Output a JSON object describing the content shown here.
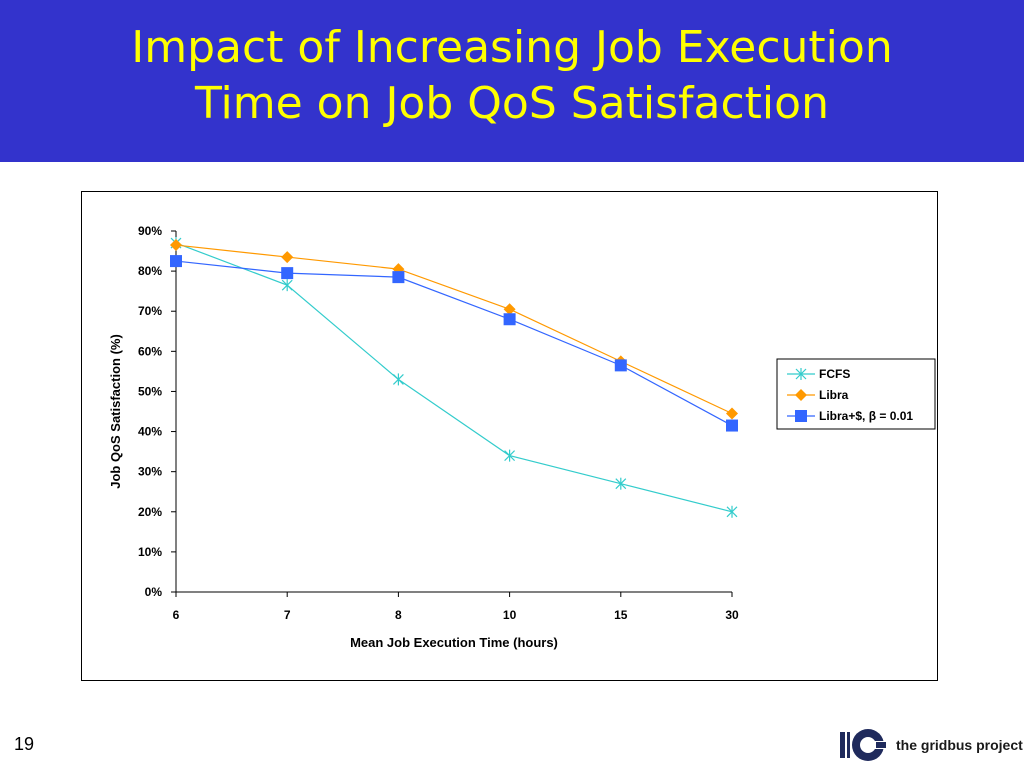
{
  "slide": {
    "title_line1": "Impact of Increasing Job Execution",
    "title_line2": "Time on Job QoS Satisfaction",
    "number": "19",
    "logo_text": "the gridbus project"
  },
  "colors": {
    "title_band": "#3333cc",
    "title_text": "#ffff00",
    "fcfs": "#33cccc",
    "libra": "#ff9900",
    "libra_beta": "#3366ff"
  },
  "chart_data": {
    "type": "line",
    "categories": [
      "6",
      "7",
      "8",
      "10",
      "15",
      "30"
    ],
    "xlabel": "Mean Job Execution Time (hours)",
    "ylabel": "Job QoS Satisfaction (%)",
    "ylim": [
      0,
      90
    ],
    "yticks": [
      "0%",
      "10%",
      "20%",
      "30%",
      "40%",
      "50%",
      "60%",
      "70%",
      "80%",
      "90%"
    ],
    "grid": false,
    "legend_position": "right",
    "series": [
      {
        "name": "FCFS",
        "marker": "asterisk",
        "color": "#33cccc",
        "values": [
          87,
          76.5,
          53,
          34,
          27,
          20
        ]
      },
      {
        "name": "Libra",
        "marker": "diamond",
        "color": "#ff9900",
        "values": [
          86.5,
          83.5,
          80.5,
          70.5,
          57.5,
          44.5
        ]
      },
      {
        "name": "Libra+$, β = 0.01",
        "marker": "square",
        "color": "#3366ff",
        "values": [
          82.5,
          79.5,
          78.5,
          68,
          56.5,
          41.5
        ]
      }
    ]
  }
}
